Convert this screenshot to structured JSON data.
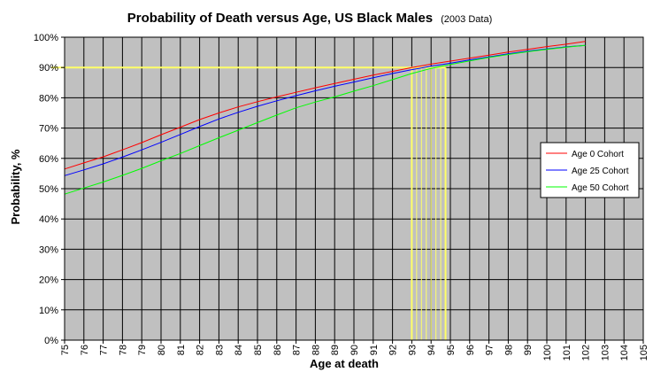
{
  "chart_data": {
    "type": "line",
    "title": "Probability of Death versus Age, US Black Males",
    "subtitle": "(2003 Data)",
    "xlabel": "Age at death",
    "ylabel": "Probability, %",
    "xlim": [
      75,
      105
    ],
    "ylim": [
      0,
      100
    ],
    "x_ticks": [
      "75",
      "76",
      "77",
      "78",
      "79",
      "80",
      "81",
      "82",
      "83",
      "84",
      "85",
      "86",
      "87",
      "88",
      "89",
      "90",
      "91",
      "92",
      "93",
      "94",
      "95",
      "96",
      "97",
      "98",
      "99",
      "100",
      "101",
      "102",
      "103",
      "104",
      "105"
    ],
    "y_ticks": [
      "0%",
      "10%",
      "20%",
      "30%",
      "40%",
      "50%",
      "60%",
      "70%",
      "80%",
      "90%",
      "100%"
    ],
    "grid": true,
    "legend_position": "right",
    "colors": {
      "plot_background": "#c0c0c0",
      "gridline": "#000000",
      "highlight": "#ffff66"
    },
    "series": [
      {
        "name": "Age 0 Cohort",
        "color": "#ff0000",
        "x": [
          75,
          76,
          77,
          78,
          79,
          80,
          81,
          82,
          83,
          84,
          85,
          86,
          87,
          88,
          89,
          90,
          91,
          92,
          93,
          94,
          95,
          96,
          97,
          98,
          99,
          100,
          101,
          102
        ],
        "values": [
          56.5,
          58.5,
          60.5,
          62.8,
          65.2,
          67.8,
          70.3,
          72.8,
          75.0,
          77.0,
          78.7,
          80.3,
          81.8,
          83.3,
          84.7,
          86.1,
          87.5,
          88.7,
          90.0,
          91.1,
          92.1,
          93.1,
          94.1,
          95.1,
          96.0,
          96.9,
          97.7,
          98.6
        ]
      },
      {
        "name": "Age 25 Cohort",
        "color": "#0000ff",
        "x": [
          75,
          76,
          77,
          78,
          79,
          80,
          81,
          82,
          83,
          84,
          85,
          86,
          87,
          88,
          89,
          90,
          91,
          92,
          93,
          94,
          95,
          96,
          97,
          98,
          99,
          100,
          101,
          102
        ],
        "values": [
          54.3,
          56.2,
          58.2,
          60.4,
          62.8,
          65.3,
          67.9,
          70.5,
          73.0,
          75.2,
          77.2,
          79.0,
          80.7,
          82.3,
          83.8,
          85.2,
          86.6,
          88.0,
          89.3,
          90.4,
          91.4,
          92.5,
          93.5,
          94.5,
          95.4,
          96.1,
          96.8,
          97.3
        ]
      },
      {
        "name": "Age 50 Cohort",
        "color": "#00ff00",
        "x": [
          75,
          76,
          77,
          78,
          79,
          80,
          81,
          82,
          83,
          84,
          85,
          86,
          87,
          88,
          89,
          90,
          91,
          92,
          93,
          94,
          95,
          96,
          97,
          98,
          99,
          100,
          101,
          102
        ],
        "values": [
          48.2,
          50.2,
          52.2,
          54.4,
          56.7,
          59.2,
          61.6,
          64.2,
          66.8,
          69.3,
          71.8,
          74.3,
          76.7,
          78.6,
          80.3,
          82.2,
          84.0,
          86.0,
          88.0,
          89.7,
          91.0,
          92.2,
          93.3,
          94.3,
          95.2,
          96.0,
          96.7,
          97.3
        ]
      }
    ],
    "highlight": {
      "y_value": 90,
      "x_range": [
        93,
        94.75
      ],
      "x_marks": [
        93,
        93.25,
        93.5,
        93.75,
        94,
        94.25,
        94.5,
        94.75
      ]
    }
  }
}
